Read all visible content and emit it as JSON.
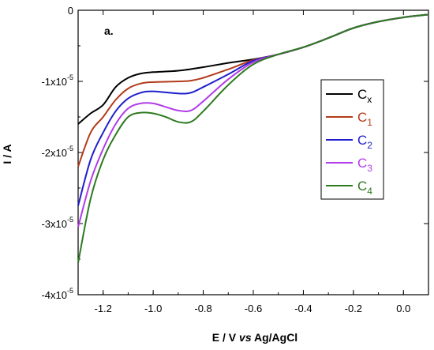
{
  "chart_data": {
    "type": "line",
    "panel_label": "a.",
    "xlabel": {
      "pre": "E / V ",
      "italic": "vs",
      "post": " Ag/AgCl"
    },
    "ylabel": "I / A",
    "xlim": [
      -1.3,
      0.1
    ],
    "ylim": [
      -4e-05,
      0
    ],
    "x_ticks": [
      {
        "value": -1.2,
        "label": "-1.2"
      },
      {
        "value": -1.0,
        "label": "-1.0"
      },
      {
        "value": -0.8,
        "label": "-0.8"
      },
      {
        "value": -0.6,
        "label": "-0.6"
      },
      {
        "value": -0.4,
        "label": "-0.4"
      },
      {
        "value": -0.2,
        "label": "-0.2"
      },
      {
        "value": 0.0,
        "label": "0.0"
      }
    ],
    "y_ticks": [
      {
        "value": 0,
        "base": "0",
        "exp": ""
      },
      {
        "value": -1e-05,
        "base": "-1x10",
        "exp": "-5"
      },
      {
        "value": -2e-05,
        "base": "-2x10",
        "exp": "-5"
      },
      {
        "value": -3e-05,
        "base": "-3x10",
        "exp": "-5"
      },
      {
        "value": -4e-05,
        "base": "-4x10",
        "exp": "-5"
      }
    ],
    "legend_position": "right",
    "series": [
      {
        "name": "C",
        "sub": "x",
        "color": "#000000",
        "x": [
          -1.3,
          -1.25,
          -1.2,
          -1.15,
          -1.1,
          -1.05,
          -1.0,
          -0.9,
          -0.8,
          -0.7,
          -0.6,
          -0.5,
          -0.4,
          -0.3,
          -0.2,
          -0.1,
          0.0,
          0.1
        ],
        "y": [
          -1.6e-05,
          -1.45e-05,
          -1.33e-05,
          -1.08e-05,
          -9.5e-06,
          -8.9e-06,
          -8.7e-06,
          -8.5e-06,
          -8e-06,
          -7.4e-06,
          -6.9e-06,
          -6.2e-06,
          -5.2e-06,
          -3.9e-06,
          -2.5e-06,
          -1.6e-06,
          -1e-06,
          -6e-07
        ]
      },
      {
        "name": "C",
        "sub": "1",
        "color": "#b33a1a",
        "x": [
          -1.3,
          -1.25,
          -1.2,
          -1.15,
          -1.1,
          -1.05,
          -1.0,
          -0.9,
          -0.85,
          -0.8,
          -0.7,
          -0.6,
          -0.5,
          -0.4,
          -0.3,
          -0.2,
          -0.1,
          0.0,
          0.1
        ],
        "y": [
          -2.2e-05,
          -1.72e-05,
          -1.5e-05,
          -1.26e-05,
          -1.1e-05,
          -1.03e-05,
          -1.01e-05,
          -1e-05,
          -9.9e-06,
          -9.5e-06,
          -8.3e-06,
          -7e-06,
          -6.2e-06,
          -5.2e-06,
          -3.9e-06,
          -2.5e-06,
          -1.6e-06,
          -1e-06,
          -6e-07
        ]
      },
      {
        "name": "C",
        "sub": "2",
        "color": "#1f1fcc",
        "x": [
          -1.3,
          -1.25,
          -1.2,
          -1.15,
          -1.1,
          -1.05,
          -1.0,
          -0.9,
          -0.85,
          -0.8,
          -0.7,
          -0.6,
          -0.5,
          -0.4,
          -0.3,
          -0.2,
          -0.1,
          0.0,
          0.1
        ],
        "y": [
          -2.75e-05,
          -2.1e-05,
          -1.72e-05,
          -1.42e-05,
          -1.24e-05,
          -1.16e-05,
          -1.14e-05,
          -1.17e-05,
          -1.16e-05,
          -1.08e-05,
          -9e-06,
          -7.1e-06,
          -6.2e-06,
          -5.2e-06,
          -3.9e-06,
          -2.5e-06,
          -1.6e-06,
          -1e-06,
          -6e-07
        ]
      },
      {
        "name": "C",
        "sub": "3",
        "color": "#b13ce8",
        "x": [
          -1.3,
          -1.25,
          -1.2,
          -1.15,
          -1.1,
          -1.05,
          -1.0,
          -0.95,
          -0.9,
          -0.85,
          -0.8,
          -0.7,
          -0.6,
          -0.5,
          -0.4,
          -0.3,
          -0.2,
          -0.1,
          0.0,
          0.1
        ],
        "y": [
          -3.05e-05,
          -2.4e-05,
          -1.95e-05,
          -1.6e-05,
          -1.38e-05,
          -1.31e-05,
          -1.31e-05,
          -1.36e-05,
          -1.41e-05,
          -1.41e-05,
          -1.28e-05,
          -9.7e-06,
          -7.3e-06,
          -6.2e-06,
          -5.2e-06,
          -3.9e-06,
          -2.5e-06,
          -1.6e-06,
          -1e-06,
          -6e-07
        ]
      },
      {
        "name": "C",
        "sub": "4",
        "color": "#2e7a1f",
        "x": [
          -1.3,
          -1.25,
          -1.2,
          -1.15,
          -1.1,
          -1.05,
          -1.0,
          -0.95,
          -0.9,
          -0.85,
          -0.8,
          -0.7,
          -0.6,
          -0.5,
          -0.4,
          -0.3,
          -0.2,
          -0.1,
          0.0,
          0.1
        ],
        "y": [
          -3.55e-05,
          -2.65e-05,
          -2.1e-05,
          -1.75e-05,
          -1.5e-05,
          -1.44e-05,
          -1.45e-05,
          -1.5e-05,
          -1.57e-05,
          -1.57e-05,
          -1.42e-05,
          -1.05e-05,
          -7.6e-06,
          -6.2e-06,
          -5.2e-06,
          -3.9e-06,
          -2.5e-06,
          -1.6e-06,
          -1e-06,
          -6e-07
        ]
      }
    ]
  }
}
